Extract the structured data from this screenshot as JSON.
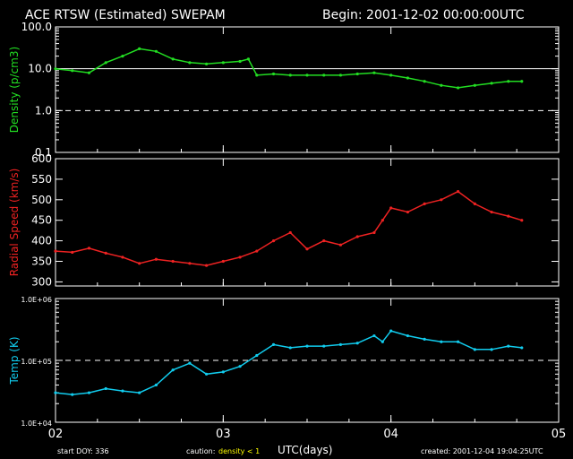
{
  "header": {
    "title": "ACE RTSW (Estimated) SWEPAM",
    "begin": "Begin: 2001-12-02 00:00:00UTC"
  },
  "footer": {
    "start_doy": "start DOY: 336",
    "caution_label": "caution:",
    "caution_value": "density < 1",
    "xlabel": "UTC(days)",
    "created": "created: 2001-12-04 19:04:25UTC"
  },
  "colors": {
    "background": "#000000",
    "axes": "#ffffff",
    "density": "#22dd22",
    "speed": "#ee2222",
    "temp": "#11ccee",
    "caution": "#ffff00"
  },
  "chart_data": [
    {
      "type": "scatter",
      "name": "density",
      "ylabel": "Density (p/cm3)",
      "yscale": "log",
      "ylim": [
        0.1,
        100
      ],
      "yticks": [
        "100.0",
        "10.0",
        "1.0",
        "0.1"
      ],
      "ytick_values": [
        100,
        10,
        1,
        0.1
      ],
      "reference_lines": [
        {
          "value": 10,
          "style": "solid"
        },
        {
          "value": 1,
          "style": "dashed"
        }
      ],
      "x": [
        2.0,
        2.1,
        2.2,
        2.3,
        2.4,
        2.5,
        2.6,
        2.7,
        2.8,
        2.9,
        3.0,
        3.1,
        3.15,
        3.2,
        3.3,
        3.4,
        3.5,
        3.6,
        3.7,
        3.8,
        3.9,
        4.0,
        4.1,
        4.2,
        4.3,
        4.4,
        4.5,
        4.6,
        4.7,
        4.78
      ],
      "values": [
        10,
        9,
        8,
        14,
        20,
        30,
        26,
        17,
        14,
        13,
        14,
        15,
        17,
        7,
        7.5,
        7,
        7,
        7,
        7,
        7.5,
        8,
        7,
        6,
        5,
        4,
        3.5,
        4,
        4.5,
        5,
        5
      ]
    },
    {
      "type": "scatter",
      "name": "radial speed",
      "ylabel": "Radial Speed (km/s)",
      "ylim": [
        290,
        600
      ],
      "yticks": [
        "600",
        "550",
        "500",
        "450",
        "400",
        "350",
        "300"
      ],
      "ytick_values": [
        600,
        550,
        500,
        450,
        400,
        350,
        300
      ],
      "x": [
        2.0,
        2.1,
        2.2,
        2.3,
        2.4,
        2.5,
        2.6,
        2.7,
        2.8,
        2.9,
        3.0,
        3.1,
        3.2,
        3.3,
        3.4,
        3.5,
        3.6,
        3.7,
        3.8,
        3.9,
        3.95,
        4.0,
        4.1,
        4.2,
        4.3,
        4.4,
        4.5,
        4.6,
        4.7,
        4.78
      ],
      "values": [
        375,
        372,
        382,
        370,
        360,
        345,
        355,
        350,
        345,
        340,
        350,
        360,
        375,
        400,
        420,
        380,
        400,
        390,
        410,
        420,
        450,
        480,
        470,
        490,
        500,
        520,
        490,
        470,
        460,
        450
      ]
    },
    {
      "type": "line",
      "name": "temperature",
      "ylabel": "Temp (K)",
      "yscale": "log",
      "ylim": [
        10000,
        1000000
      ],
      "yticks": [
        "1.0E+06",
        "1.0E+05",
        "1.0E+04"
      ],
      "ytick_values": [
        1000000,
        100000,
        10000
      ],
      "reference_lines": [
        {
          "value": 100000,
          "style": "dashed"
        }
      ],
      "x": [
        2.0,
        2.1,
        2.2,
        2.3,
        2.4,
        2.5,
        2.6,
        2.7,
        2.8,
        2.9,
        3.0,
        3.1,
        3.2,
        3.3,
        3.4,
        3.5,
        3.6,
        3.7,
        3.8,
        3.9,
        3.95,
        4.0,
        4.1,
        4.2,
        4.3,
        4.4,
        4.5,
        4.6,
        4.7,
        4.78
      ],
      "values": [
        30000,
        28000,
        30000,
        35000,
        32000,
        30000,
        40000,
        70000,
        90000,
        60000,
        65000,
        80000,
        120000,
        180000,
        160000,
        170000,
        170000,
        180000,
        190000,
        250000,
        200000,
        300000,
        250000,
        220000,
        200000,
        200000,
        150000,
        150000,
        170000,
        160000
      ]
    }
  ],
  "xaxis": {
    "label": "UTC(days)",
    "xlim": [
      2,
      5
    ],
    "ticks": [
      "02",
      "03",
      "04",
      "05"
    ],
    "tick_values": [
      2,
      3,
      4,
      5
    ]
  }
}
